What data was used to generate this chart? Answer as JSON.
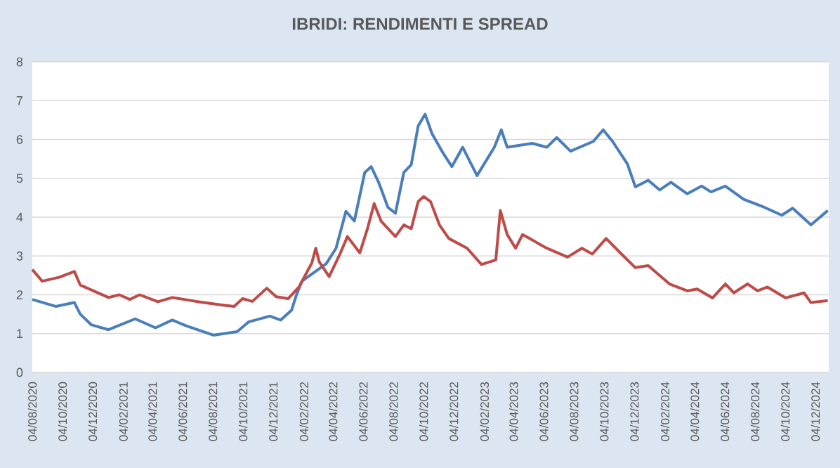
{
  "chart_data": {
    "type": "line",
    "title": "IBRIDI: RENDIMENTI E SPREAD",
    "xlim": [
      "2020-08-04",
      "2024-12-31"
    ],
    "ylim": [
      0,
      8
    ],
    "yticks": [
      0,
      1,
      2,
      3,
      4,
      5,
      6,
      7,
      8
    ],
    "xticks": [
      {
        "value": "2020-08-04",
        "label": "04/08/2020"
      },
      {
        "value": "2020-10-04",
        "label": "04/10/2020"
      },
      {
        "value": "2020-12-04",
        "label": "04/12/2020"
      },
      {
        "value": "2021-02-04",
        "label": "04/02/2021"
      },
      {
        "value": "2021-04-04",
        "label": "04/04/2021"
      },
      {
        "value": "2021-06-04",
        "label": "04/06/2021"
      },
      {
        "value": "2021-08-04",
        "label": "04/08/2021"
      },
      {
        "value": "2021-10-04",
        "label": "04/10/2021"
      },
      {
        "value": "2021-12-04",
        "label": "04/12/2021"
      },
      {
        "value": "2022-02-04",
        "label": "04/02/2022"
      },
      {
        "value": "2022-04-04",
        "label": "04/04/2022"
      },
      {
        "value": "2022-06-04",
        "label": "04/06/2022"
      },
      {
        "value": "2022-08-04",
        "label": "04/08/2022"
      },
      {
        "value": "2022-10-04",
        "label": "04/10/2022"
      },
      {
        "value": "2022-12-04",
        "label": "04/12/2022"
      },
      {
        "value": "2023-02-04",
        "label": "04/02/2023"
      },
      {
        "value": "2023-04-04",
        "label": "04/04/2023"
      },
      {
        "value": "2023-06-04",
        "label": "04/06/2023"
      },
      {
        "value": "2023-08-04",
        "label": "04/08/2023"
      },
      {
        "value": "2023-10-04",
        "label": "04/10/2023"
      },
      {
        "value": "2023-12-04",
        "label": "04/12/2023"
      },
      {
        "value": "2024-02-04",
        "label": "04/02/2024"
      },
      {
        "value": "2024-04-04",
        "label": "04/04/2024"
      },
      {
        "value": "2024-06-04",
        "label": "04/06/2024"
      },
      {
        "value": "2024-08-04",
        "label": "04/08/2024"
      },
      {
        "value": "2024-10-04",
        "label": "04/10/2024"
      },
      {
        "value": "2024-12-04",
        "label": "04/12/2024"
      }
    ],
    "grid": "y",
    "legend": false,
    "marker": "none",
    "line_style": "solid",
    "series": [
      {
        "color": "#4a7ebb",
        "x": [
          "2020-08-04",
          "2020-09-21",
          "2020-10-28",
          "2020-11-09",
          "2020-12-01",
          "2021-01-05",
          "2021-02-28",
          "2021-04-10",
          "2021-05-14",
          "2021-06-11",
          "2021-08-05",
          "2021-09-22",
          "2021-10-15",
          "2021-11-27",
          "2021-12-19",
          "2022-01-10",
          "2022-01-20",
          "2022-01-31",
          "2022-03-21",
          "2022-04-10",
          "2022-04-30",
          "2022-05-17",
          "2022-06-07",
          "2022-06-20",
          "2022-07-05",
          "2022-07-24",
          "2022-08-08",
          "2022-08-25",
          "2022-09-09",
          "2022-09-23",
          "2022-10-07",
          "2022-10-21",
          "2022-11-10",
          "2022-11-30",
          "2022-12-22",
          "2023-01-20",
          "2023-02-24",
          "2023-03-10",
          "2023-03-22",
          "2023-05-12",
          "2023-06-10",
          "2023-06-30",
          "2023-07-28",
          "2023-09-12",
          "2023-10-02",
          "2023-10-21",
          "2023-11-20",
          "2023-12-06",
          "2024-01-01",
          "2024-01-24",
          "2024-02-16",
          "2024-03-20",
          "2024-04-18",
          "2024-05-07",
          "2024-06-05",
          "2024-07-12",
          "2024-08-18",
          "2024-09-27",
          "2024-10-19",
          "2024-11-25",
          "2024-12-29"
        ],
        "values": [
          1.88,
          1.7,
          1.8,
          1.5,
          1.23,
          1.1,
          1.38,
          1.15,
          1.35,
          1.2,
          0.96,
          1.05,
          1.3,
          1.45,
          1.35,
          1.6,
          2.0,
          2.35,
          2.8,
          3.2,
          4.15,
          3.9,
          5.15,
          5.3,
          4.9,
          4.25,
          4.1,
          5.15,
          5.35,
          6.35,
          6.65,
          6.15,
          5.7,
          5.3,
          5.8,
          5.07,
          5.8,
          6.25,
          5.8,
          5.9,
          5.8,
          6.05,
          5.7,
          5.95,
          6.25,
          5.95,
          5.37,
          4.78,
          4.95,
          4.7,
          4.9,
          4.6,
          4.8,
          4.65,
          4.8,
          4.46,
          4.28,
          4.05,
          4.23,
          3.8,
          4.17
        ]
      },
      {
        "color": "#be4b48",
        "x": [
          "2020-08-04",
          "2020-08-24",
          "2020-09-27",
          "2020-10-28",
          "2020-11-09",
          "2021-01-05",
          "2021-01-27",
          "2021-02-17",
          "2021-03-09",
          "2021-04-15",
          "2021-05-14",
          "2021-07-01",
          "2021-08-27",
          "2021-09-16",
          "2021-10-03",
          "2021-10-23",
          "2021-11-21",
          "2021-12-10",
          "2022-01-03",
          "2022-01-25",
          "2022-02-20",
          "2022-02-28",
          "2022-03-07",
          "2022-03-27",
          "2022-04-19",
          "2022-05-03",
          "2022-05-28",
          "2022-06-12",
          "2022-06-26",
          "2022-07-10",
          "2022-08-08",
          "2022-08-25",
          "2022-09-09",
          "2022-09-23",
          "2022-10-04",
          "2022-10-18",
          "2022-11-05",
          "2022-11-24",
          "2022-12-31",
          "2023-01-29",
          "2023-02-27",
          "2023-03-08",
          "2023-03-22",
          "2023-04-08",
          "2023-04-22",
          "2023-06-10",
          "2023-07-22",
          "2023-08-20",
          "2023-09-10",
          "2023-10-08",
          "2023-11-08",
          "2023-12-06",
          "2024-01-01",
          "2024-02-13",
          "2024-03-20",
          "2024-04-09",
          "2024-05-10",
          "2024-06-05",
          "2024-06-22",
          "2024-07-20",
          "2024-08-09",
          "2024-08-29",
          "2024-10-05",
          "2024-11-11",
          "2024-11-25",
          "2024-12-29"
        ],
        "values": [
          2.65,
          2.35,
          2.45,
          2.6,
          2.25,
          1.93,
          2.0,
          1.88,
          2.0,
          1.82,
          1.93,
          1.83,
          1.73,
          1.7,
          1.9,
          1.83,
          2.17,
          1.95,
          1.9,
          2.2,
          2.82,
          3.2,
          2.85,
          2.47,
          3.08,
          3.5,
          3.08,
          3.68,
          4.35,
          3.9,
          3.5,
          3.8,
          3.7,
          4.4,
          4.53,
          4.4,
          3.8,
          3.45,
          3.2,
          2.78,
          2.9,
          4.17,
          3.55,
          3.2,
          3.55,
          3.2,
          2.97,
          3.2,
          3.05,
          3.45,
          3.05,
          2.7,
          2.75,
          2.28,
          2.1,
          2.15,
          1.92,
          2.28,
          2.05,
          2.28,
          2.1,
          2.2,
          1.92,
          2.05,
          1.8,
          1.85
        ]
      }
    ]
  }
}
